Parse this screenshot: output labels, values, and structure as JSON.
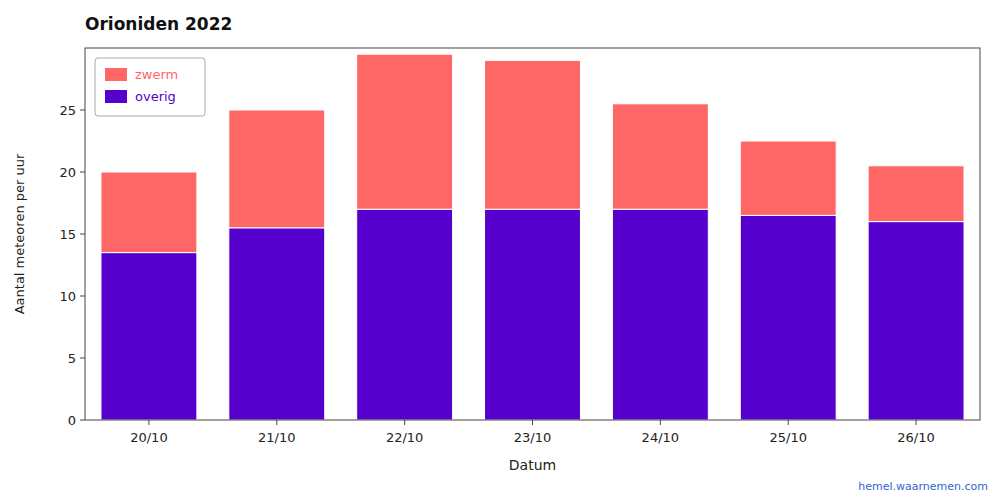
{
  "chart_data": {
    "type": "bar",
    "stacked": true,
    "title": "Orioniden 2022",
    "x_label": "Datum",
    "y_label": "Aantal meteoren per uur",
    "categories": [
      "20/10",
      "21/10",
      "22/10",
      "23/10",
      "24/10",
      "25/10",
      "26/10"
    ],
    "series": [
      {
        "name": "overig",
        "color": "#5500cc",
        "values": [
          13.5,
          15.5,
          17,
          17,
          17,
          16.5,
          16
        ]
      },
      {
        "name": "zwerm",
        "color": "#ff6666",
        "values": [
          6.5,
          9.5,
          12.5,
          12,
          8.5,
          6,
          4.5
        ]
      }
    ],
    "ylim": [
      0,
      30
    ],
    "yticks": [
      0,
      5,
      10,
      15,
      20,
      25
    ],
    "grid": false,
    "legend": "upper left",
    "annotations": [
      "hemel.waarnemen.com"
    ]
  }
}
